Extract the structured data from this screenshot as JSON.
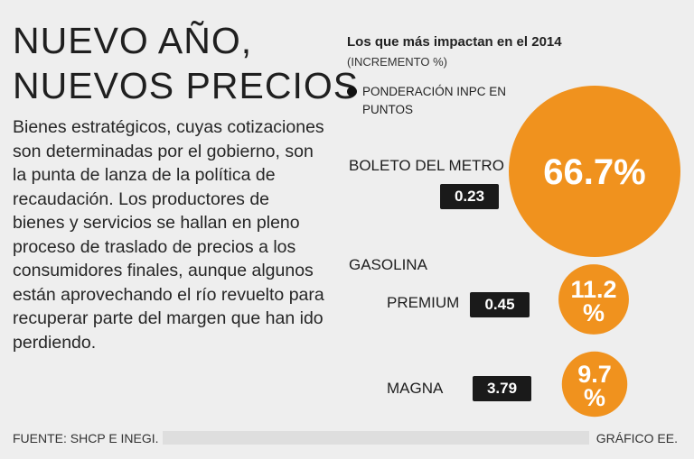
{
  "headline": {
    "line1": "NUEVO AÑO,",
    "line2": "NUEVOS PRECIOS"
  },
  "body": "Bienes estratégicos, cuyas cotizaciones son determinadas por el gobierno, son la punta de lanza de la política de recaudación. Los productores de bienes y servicios se hallan en pleno proceso de traslado de precios a los consumidores finales, aunque algunos están aprovechando el río revuelto para recuperar parte del margen que han ido perdiendo.",
  "chart_data": {
    "type": "bubble",
    "title": "Los que más impactan en el 2014",
    "subtitle": "(INCREMENTO %)",
    "legend": "PONDERACIÓN INPC EN PUNTOS",
    "group_label": "GASOLINA",
    "items": [
      {
        "name": "BOLETO DEL METRO",
        "increase_label": "66.7%",
        "increase": 66.7,
        "weight_label": "0.23",
        "weight": 0.23
      },
      {
        "name": "PREMIUM",
        "increase_label": "11.2%",
        "increase": 11.2,
        "weight_label": "0.45",
        "weight": 0.45
      },
      {
        "name": "MAGNA",
        "increase_label": "9.7%",
        "increase": 9.7,
        "weight_label": "3.79",
        "weight": 3.79
      }
    ],
    "colors": {
      "bubble": "#f0921e",
      "badge": "#1a1a1a"
    }
  },
  "footer": {
    "source": "FUENTE: SHCP E INEGI.",
    "credit": "GRÁFICO EE."
  }
}
